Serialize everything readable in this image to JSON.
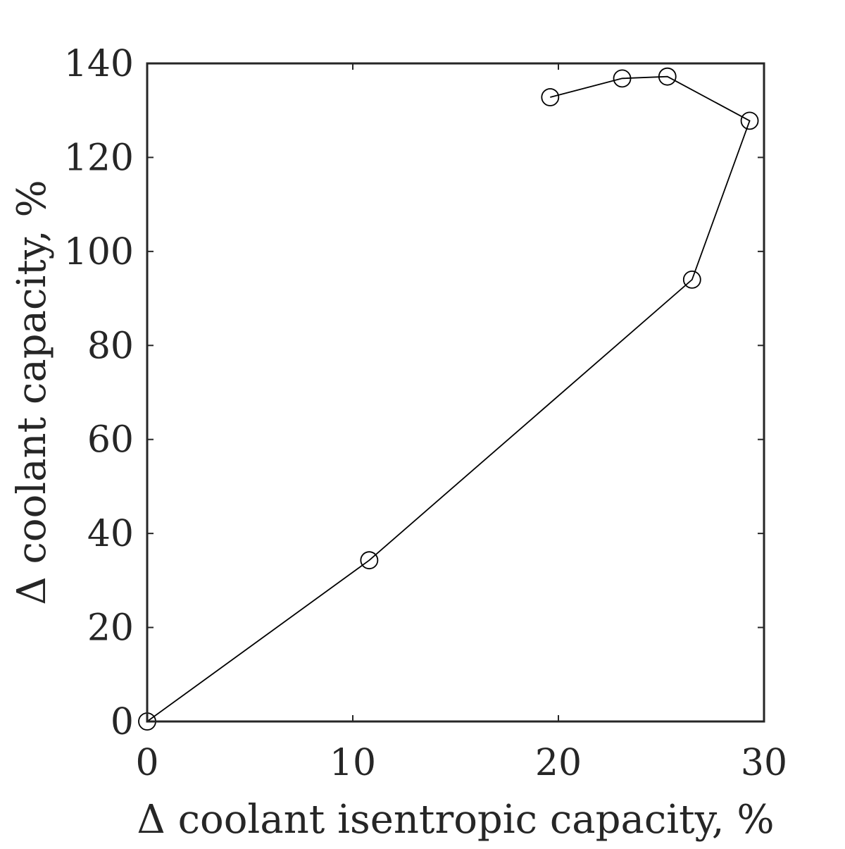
{
  "chart_data": {
    "type": "line",
    "title": "",
    "xlabel": "Δ coolant isentropic capacity, %",
    "ylabel": "Δ  coolant capacity, %",
    "xlim": [
      0,
      30
    ],
    "ylim": [
      0,
      140
    ],
    "xticks": [
      0,
      10,
      20,
      30
    ],
    "yticks": [
      0,
      20,
      40,
      60,
      80,
      100,
      120,
      140
    ],
    "xtick_labels": [
      "0",
      "10",
      "20",
      "30"
    ],
    "ytick_labels": [
      "0",
      "20",
      "40",
      "60",
      "80",
      "100",
      "120",
      "140"
    ],
    "grid": false,
    "marker": "circle",
    "series": [
      {
        "x": [
          0,
          10.8,
          26.5,
          29.3,
          25.3,
          23.1,
          19.6
        ],
        "y": [
          0,
          34.3,
          94.0,
          127.8,
          137.2,
          136.8,
          132.8
        ]
      }
    ],
    "colors": {
      "line": "#000000",
      "axis": "#262626"
    }
  }
}
